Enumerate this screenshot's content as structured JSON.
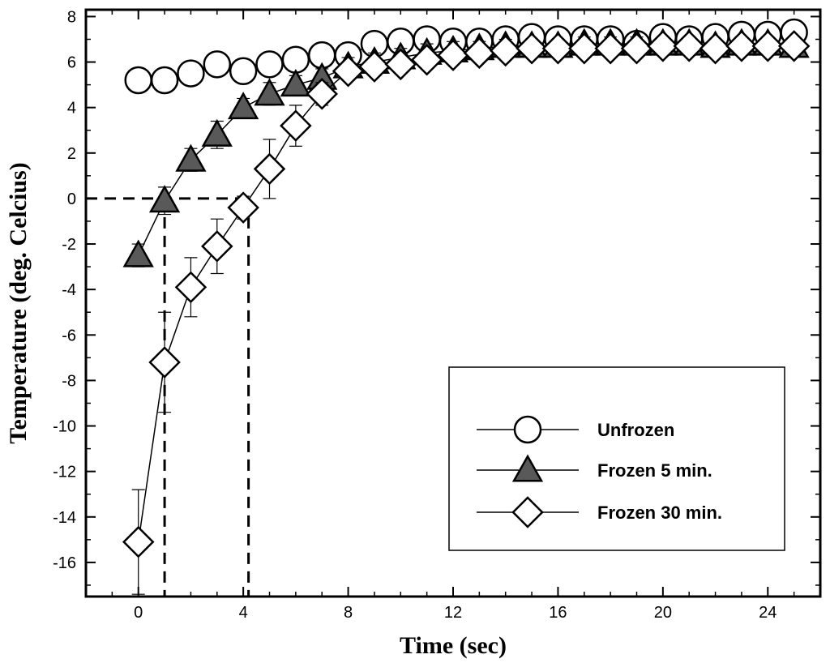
{
  "chart_data": {
    "type": "scatter",
    "title": "",
    "xlabel": "Time (sec)",
    "ylabel": "Temperature (deg. Celcius)",
    "xlim": [
      -2,
      26
    ],
    "ylim": [
      -17.5,
      8.3
    ],
    "xticks": [
      0,
      4,
      8,
      12,
      16,
      20,
      24
    ],
    "yticks": [
      8,
      6,
      4,
      2,
      0,
      -2,
      -4,
      -6,
      -8,
      -10,
      -12,
      -14,
      -16
    ],
    "grid": false,
    "legend_position": "bottom-right",
    "series": [
      {
        "name": "Unfrozen",
        "marker": "circle",
        "fill": "#ffffff",
        "x": [
          0,
          1,
          2,
          3,
          4,
          5,
          6,
          7,
          8,
          9,
          10,
          11,
          12,
          13,
          14,
          15,
          16,
          17,
          18,
          19,
          20,
          21,
          22,
          23,
          24,
          25
        ],
        "y": [
          5.2,
          5.2,
          5.5,
          5.9,
          5.6,
          5.9,
          6.1,
          6.3,
          6.3,
          6.8,
          6.9,
          7.0,
          6.9,
          6.9,
          7.0,
          7.1,
          7.0,
          7.0,
          7.0,
          6.8,
          7.1,
          7.0,
          7.1,
          7.2,
          7.2,
          7.3
        ],
        "err": [
          0.3,
          0.3,
          0.4,
          0.4,
          0.4,
          0.4,
          0.4,
          0.5,
          0.4,
          0.4,
          0.4,
          0.4,
          0.4,
          0.4,
          0.4,
          0.4,
          0.4,
          0.4,
          0.4,
          0.4,
          0.4,
          0.4,
          0.4,
          0.4,
          0.4,
          0.4
        ]
      },
      {
        "name": "Frozen 5 min.",
        "marker": "triangle",
        "fill": "#595959",
        "x": [
          0,
          1,
          2,
          3,
          4,
          5,
          6,
          7,
          8,
          9,
          10,
          11,
          12,
          13,
          14,
          15,
          16,
          17,
          18,
          19,
          20,
          21,
          22,
          23,
          24,
          25
        ],
        "y": [
          -2.5,
          -0.1,
          1.7,
          2.8,
          4.0,
          4.6,
          5.0,
          5.3,
          5.8,
          6.0,
          6.2,
          6.4,
          6.5,
          6.6,
          6.7,
          6.7,
          6.7,
          6.8,
          6.8,
          6.8,
          6.8,
          6.8,
          6.7,
          6.8,
          6.8,
          6.7
        ],
        "err": [
          0.5,
          0.6,
          0.5,
          0.6,
          0.4,
          0.5,
          0.4,
          0.4,
          0.4,
          0.4,
          0.4,
          0.4,
          0.4,
          0.3,
          0.3,
          0.3,
          0.3,
          0.3,
          0.3,
          0.3,
          0.3,
          0.3,
          0.3,
          0.3,
          0.3,
          0.3
        ]
      },
      {
        "name": "Frozen 30 min.",
        "marker": "diamond",
        "fill": "#ffffff",
        "x": [
          0,
          1,
          2,
          3,
          4,
          5,
          6,
          7,
          8,
          9,
          10,
          11,
          12,
          13,
          14,
          15,
          16,
          17,
          18,
          19,
          20,
          21,
          22,
          23,
          24,
          25
        ],
        "y": [
          -15.1,
          -7.2,
          -3.9,
          -2.1,
          -0.4,
          1.3,
          3.2,
          4.6,
          5.6,
          5.8,
          5.9,
          6.1,
          6.3,
          6.4,
          6.5,
          6.6,
          6.6,
          6.6,
          6.6,
          6.6,
          6.7,
          6.7,
          6.6,
          6.7,
          6.7,
          6.7
        ],
        "err": [
          2.3,
          2.2,
          1.3,
          1.2,
          0.5,
          1.3,
          0.9,
          0.5,
          0.4,
          0.4,
          0.4,
          0.4,
          0.4,
          0.4,
          0.4,
          0.4,
          0.4,
          0.4,
          0.4,
          0.4,
          0.4,
          0.4,
          0.4,
          0.4,
          0.4,
          0.4
        ]
      }
    ],
    "reference_lines": [
      {
        "style": "dashed",
        "points": [
          [
            -2,
            0
          ],
          [
            4.2,
            0
          ]
        ]
      },
      {
        "style": "dashed",
        "points": [
          [
            1,
            0
          ],
          [
            1,
            -17.5
          ]
        ]
      },
      {
        "style": "dashed",
        "points": [
          [
            4.2,
            0
          ],
          [
            4.2,
            -17.5
          ]
        ]
      }
    ]
  }
}
